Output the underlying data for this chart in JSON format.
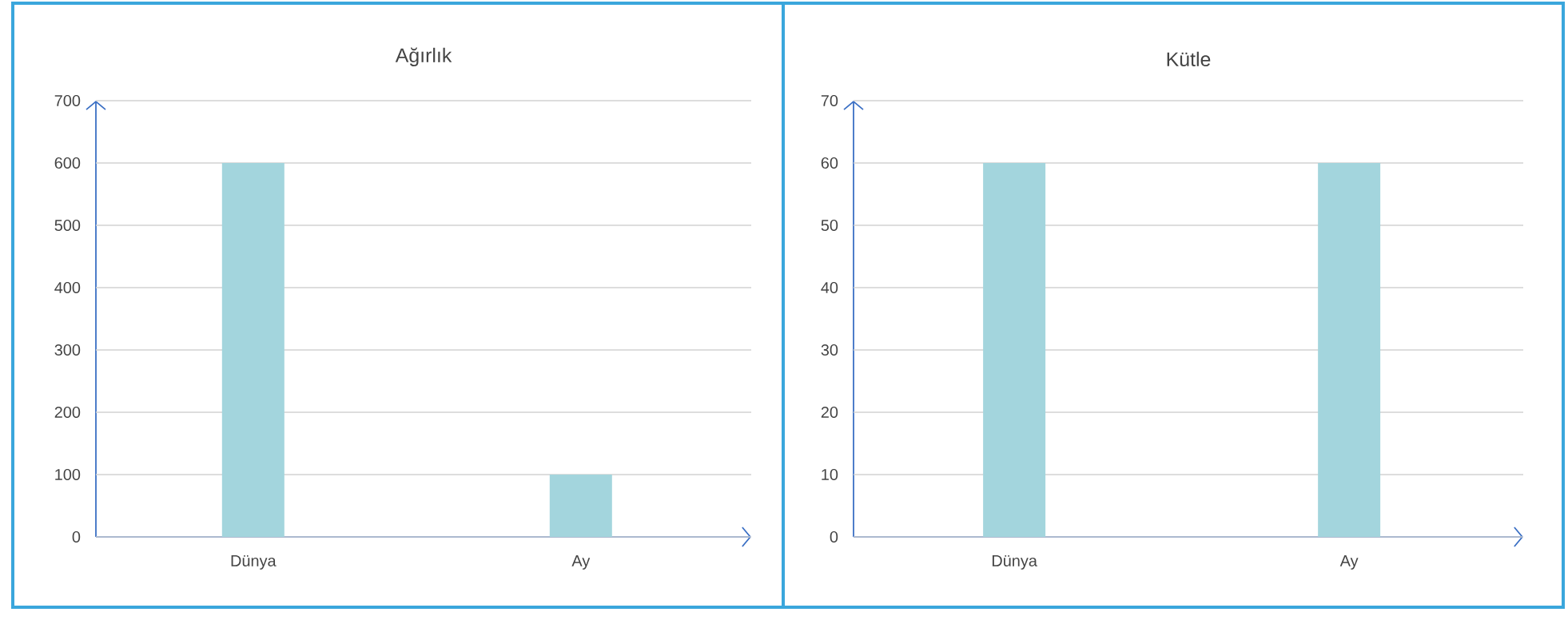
{
  "chart_data": [
    {
      "type": "bar",
      "title": "Ağırlık",
      "categories": [
        "Dünya",
        "Ay"
      ],
      "values": [
        600,
        100
      ],
      "color": "#a3d5dd",
      "ylim": [
        0,
        700
      ],
      "yticks": [
        0,
        100,
        200,
        300,
        400,
        500,
        600,
        700
      ],
      "grid": "y"
    },
    {
      "type": "bar",
      "title": "Kütle",
      "categories": [
        "Dünya",
        "Ay"
      ],
      "values": [
        60,
        60
      ],
      "color": "#a3d5dd",
      "ylim": [
        0,
        70
      ],
      "yticks": [
        0,
        10,
        20,
        30,
        40,
        50,
        60,
        70
      ],
      "grid": "y"
    }
  ]
}
